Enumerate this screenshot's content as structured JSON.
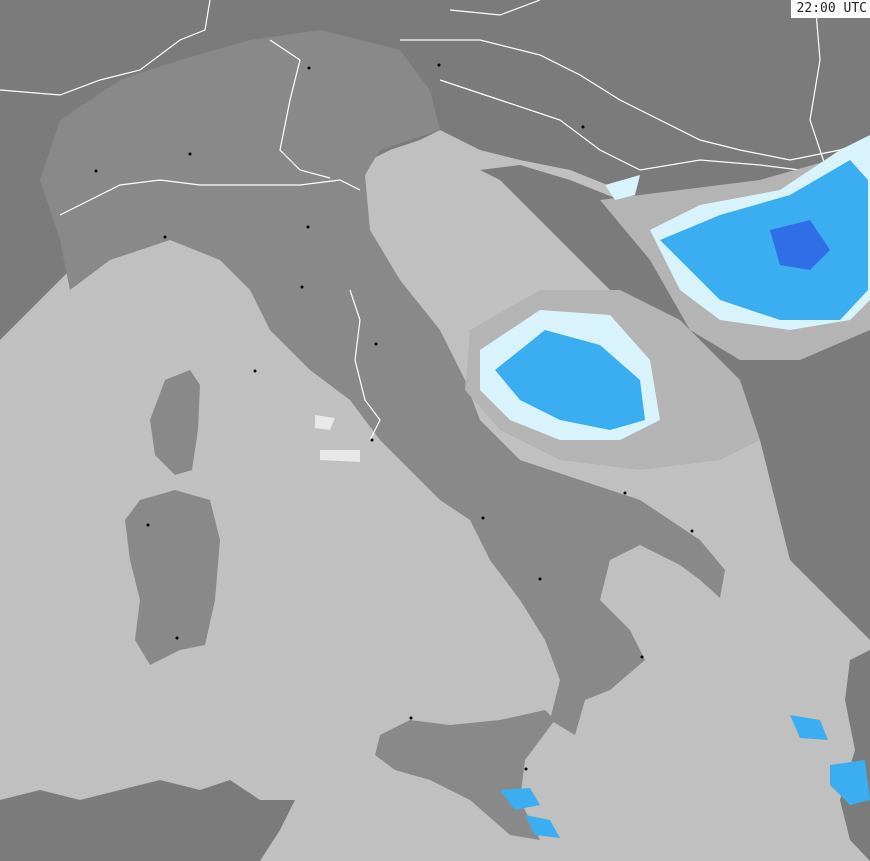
{
  "map": {
    "timestamp": "22:00 UTC",
    "colors": {
      "sea": "#c0c0c0",
      "land": "#898989",
      "land_dark": "#7b7b7b",
      "border": "#ffffff",
      "precip_light": "#d8f3fb",
      "precip_medium": "#3aaef0",
      "precip_heavy": "#2f6ee6",
      "cloud": "#a9a9a9"
    }
  }
}
